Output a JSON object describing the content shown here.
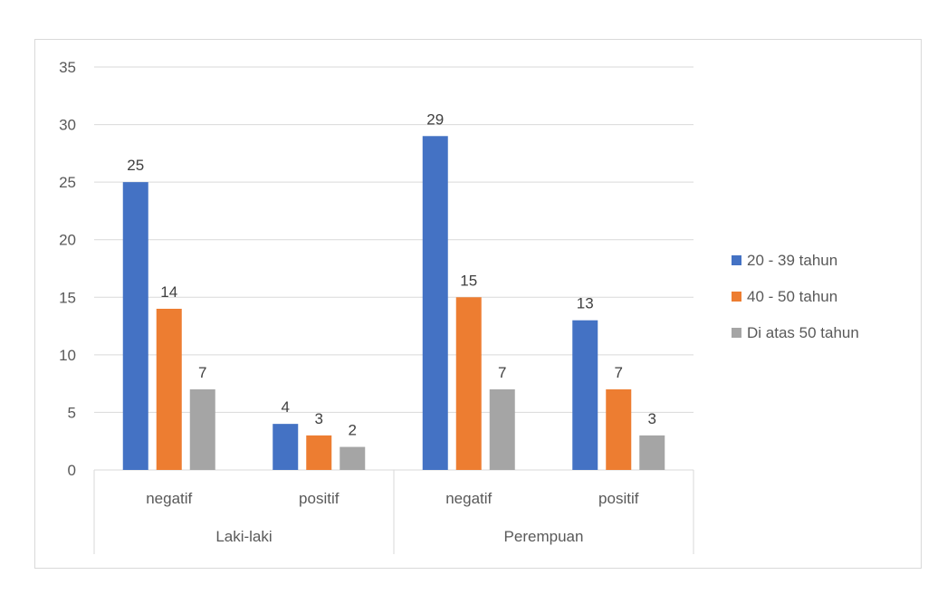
{
  "chart_data": {
    "type": "bar",
    "title": "",
    "xlabel": "",
    "ylabel": "",
    "ylim": [
      0,
      35
    ],
    "yticks": [
      0,
      5,
      10,
      15,
      20,
      25,
      30,
      35
    ],
    "grid": true,
    "legend_position": "right",
    "groups": [
      {
        "label": "Laki-laki",
        "categories": [
          "negatif",
          "positif"
        ]
      },
      {
        "label": "Perempuan",
        "categories": [
          "negatif",
          "positif"
        ]
      }
    ],
    "series": [
      {
        "name": "20 - 39 tahun",
        "color": "#4472c4",
        "values": [
          25,
          4,
          29,
          13
        ]
      },
      {
        "name": "40 - 50 tahun",
        "color": "#ed7d31",
        "values": [
          14,
          3,
          15,
          7
        ]
      },
      {
        "name": "Di atas 50 tahun",
        "color": "#a5a5a5",
        "values": [
          7,
          2,
          7,
          3
        ]
      }
    ]
  }
}
